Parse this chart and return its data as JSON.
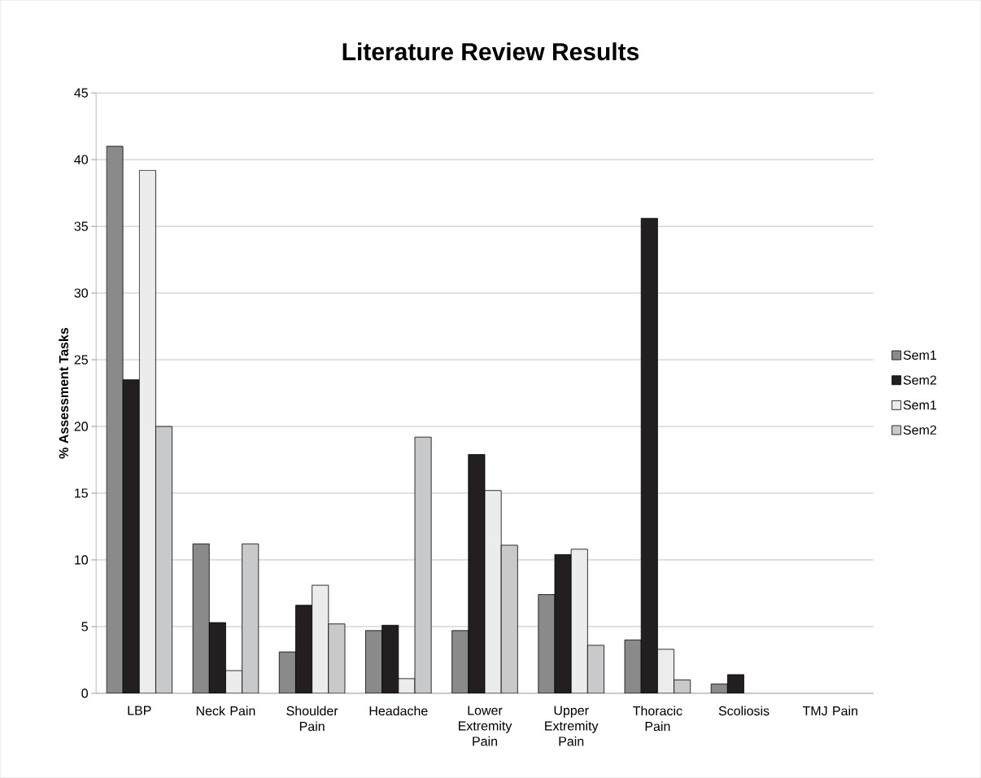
{
  "chart_data": {
    "type": "bar",
    "title": "Literature Review Results",
    "ylabel": "% Assessment Tasks",
    "categories": [
      "LBP",
      "Neck Pain",
      "Shoulder Pain",
      "Headache",
      "Lower Extremity Pain",
      "Upper Extremity Pain",
      "Thoracic Pain",
      "Scoliosis",
      "TMJ Pain"
    ],
    "series": [
      {
        "name": "Sem1",
        "color": "#8a8a8a",
        "values": [
          41,
          11.2,
          3.1,
          4.7,
          4.7,
          7.4,
          4.0,
          0.7,
          0
        ]
      },
      {
        "name": "Sem2",
        "color": "#231f20",
        "values": [
          23.5,
          5.3,
          6.6,
          5.1,
          17.9,
          10.4,
          35.6,
          1.4,
          0
        ]
      },
      {
        "name": "Sem1",
        "color": "#ececec",
        "values": [
          39.2,
          1.7,
          8.1,
          1.1,
          15.2,
          10.8,
          3.3,
          0,
          0
        ]
      },
      {
        "name": "Sem2",
        "color": "#c8c9cb",
        "values": [
          20,
          11.2,
          5.2,
          19.2,
          11.1,
          3.6,
          1.0,
          0,
          0
        ]
      }
    ],
    "ylim": [
      0,
      45
    ],
    "yticks": [
      0,
      5,
      10,
      15,
      20,
      25,
      30,
      35,
      40,
      45
    ],
    "grid": "y",
    "legend": "right"
  }
}
